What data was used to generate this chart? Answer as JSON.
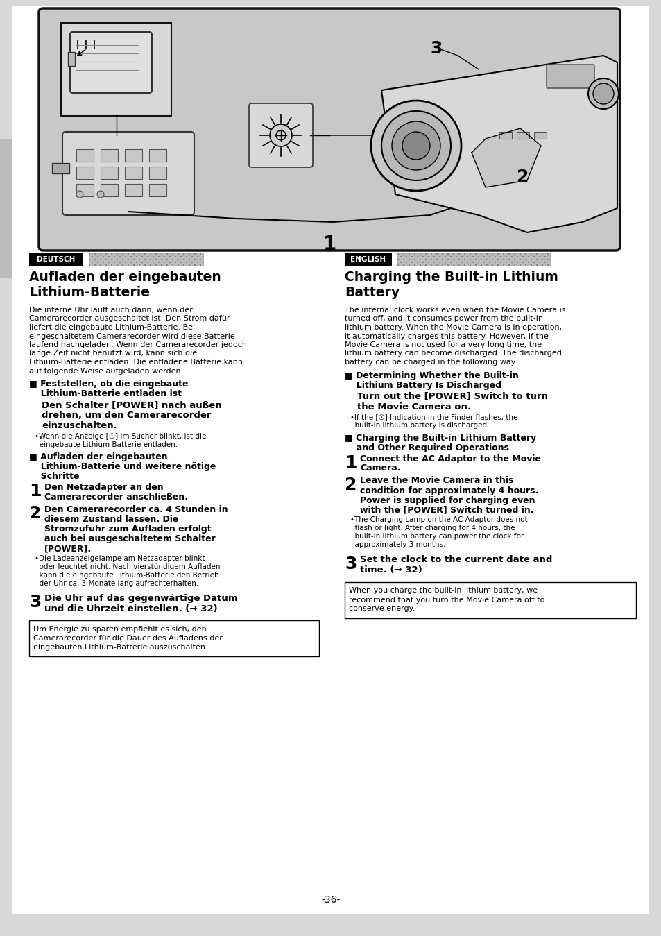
{
  "page_bg": "#d8d8d8",
  "content_bg": "#ffffff",
  "page_number": "-36-",
  "diagram_bg": "#c0c0c0",
  "left_col": {
    "lang_label": "DEUTSCH",
    "title_line1": "Aufladen der eingebauten",
    "title_line2": "Lithium-Batterie",
    "body1": [
      "Die interne Uhr läuft auch dann, wenn der",
      "Camerarecorder ausgeschaltet ist. Den Strom dafür",
      "liefert die eingebaute Lithium-Batterie. Bei",
      "eingeschaltetem Camerarecorder wird diese Batterie",
      "laufend nachgeladen. Wenn der Camerarecorder jedoch",
      "lange Zeit nicht benutzt wird, kann sich die",
      "Lithium-Batterie entladen. Die entladene Batterie kann",
      "auf folgende Weise aufgeladen werden."
    ],
    "s1_head1": "■ Feststellen, ob die eingebaute",
    "s1_head2": "  Lithium-Batterie entladen ist",
    "s1_sub": [
      "Den Schalter [POWER] nach außen",
      "drehen, um den Camerarecorder",
      "einzuschalten."
    ],
    "s1_bullet1": "•Wenn die Anzeige [☉] im Sucher blinkt, ist die",
    "s1_bullet2": "  eingebaute Lithium-Batterie entladen.",
    "s2_head1": "■ Aufladen der eingebauten",
    "s2_head2": "  Lithium-Batterie und weitere nötige",
    "s2_head3": "  Schritte",
    "step1_text": [
      "Den Netzadapter an den",
      "Camerarecorder anschließen."
    ],
    "step2_text": [
      "Den Camerarecorder ca. 4 Stunden in",
      "diesem Zustand lassen. Die",
      "Stromzufuhr zum Aufladen erfolgt",
      "auch bei ausgeschaltetem Schalter",
      "[POWER]."
    ],
    "step2_bullet": [
      "•Die Ladeanzeigelampe am Netzadapter blinkt",
      "  oder leuchtet nicht. Nach vierstündigem Aufladen",
      "  kann die eingebaute Lithium-Batterie den Betrieb",
      "  der Uhr ca. 3 Monate lang aufrechterhalten."
    ],
    "step3_text": [
      "Die Uhr auf das gegenwärtige Datum",
      "und die Uhrzeit einstellen. (→ 32)"
    ],
    "note": [
      "Um Energie zu sparen empfiehlt es sich, den",
      "Camerarecorder für die Dauer des Aufladens der",
      "eingebauten Lithium-Batterie auszuschalten."
    ]
  },
  "right_col": {
    "lang_label": "ENGLISH",
    "title_line1": "Charging the Built-in Lithium",
    "title_line2": "Battery",
    "body1": [
      "The internal clock works even when the Movie Camera is",
      "turned off, and it consumes power from the built-in",
      "lithium battery. When the Movie Camera is in operation,",
      "it automatically charges this battery. However, if the",
      "Movie Camera is not used for a very long time, the",
      "lithium battery can become discharged. The discharged",
      "battery can be charged in the following way:"
    ],
    "s1_head1": "■ Determining Whether the Built-in",
    "s1_head2": "  Lithium Battery Is Discharged",
    "s1_sub": [
      "Turn out the [POWER] Switch to turn",
      "the Movie Camera on."
    ],
    "s1_bullet1": "•If the [☉] Indication in the Finder flashes, the",
    "s1_bullet2": "  built-in lithium battery is discharged.",
    "s2_head1": "■ Charging the Built-in Lithium Battery",
    "s2_head2": "  and Other Required Operations",
    "step1_text": [
      "Connect the AC Adaptor to the Movie",
      "Camera."
    ],
    "step2_text": [
      "Leave the Movie Camera in this",
      "condition for approximately 4 hours.",
      "Power is supplied for charging even",
      "with the [POWER] Switch turned in."
    ],
    "step2_bullet": [
      "•The Charging Lamp on the AC Adaptor does not",
      "  flash or light. After charging for 4 hours, the",
      "  built-in lithium battery can power the clock for",
      "  approximately 3 months."
    ],
    "step3_text": [
      "Set the clock to the current date and",
      "time. (→ 32)"
    ],
    "note": [
      "When you charge the built-in lithium battery, we",
      "recommend that you turn the Movie Camera off to",
      "conserve energy."
    ]
  }
}
